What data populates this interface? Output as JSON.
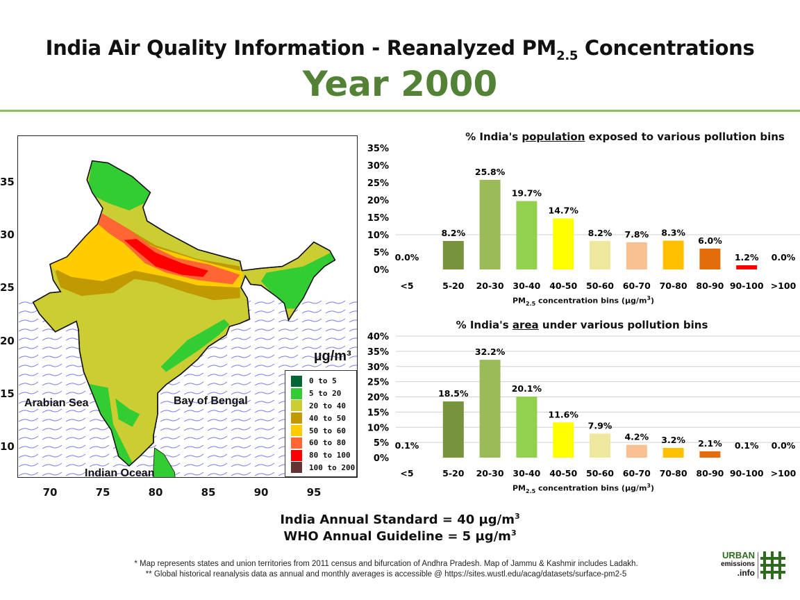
{
  "header": {
    "title_main": "India Air Quality Information - Reanalyzed PM",
    "title_sub": "2.5",
    "title_end": " Concentrations",
    "year": "Year 2000"
  },
  "map": {
    "x_ticks": [
      "70",
      "75",
      "80",
      "85",
      "90",
      "95"
    ],
    "y_ticks": [
      "35",
      "30",
      "25",
      "20",
      "15",
      "10"
    ],
    "labels": {
      "arabian_sea": "Arabian Sea",
      "bay_of_bengal": "Bay of Bengal",
      "indian_ocean": "Indian Ocean"
    },
    "unit": "µg/m³",
    "legend": [
      {
        "label": "0 to 5",
        "color": "#006633"
      },
      {
        "label": "5 to 20",
        "color": "#33cc33"
      },
      {
        "label": "20 to 40",
        "color": "#cccc33"
      },
      {
        "label": "40 to 50",
        "color": "#c09a00"
      },
      {
        "label": "50 to 60",
        "color": "#ffcc00"
      },
      {
        "label": "60 to 80",
        "color": "#ff6633"
      },
      {
        "label": "80 to 100",
        "color": "#ff0000"
      },
      {
        "label": "100 to 200",
        "color": "#663333"
      }
    ]
  },
  "chart_data": [
    {
      "type": "bar",
      "title_pre": "% India's ",
      "title_underlined": "population",
      "title_post": " exposed to various pollution bins",
      "xlabel_pre": "PM",
      "xlabel_sub": "2.5",
      "xlabel_mid": " concentration bins (µg/m",
      "xlabel_sup": "3",
      "xlabel_post": ")",
      "categories": [
        "<5",
        "5-20",
        "20-30",
        "30-40",
        "40-50",
        "50-60",
        "60-70",
        "70-80",
        "80-90",
        "90-100",
        ">100"
      ],
      "values": [
        0.0,
        8.2,
        25.8,
        19.7,
        14.7,
        8.2,
        7.8,
        8.3,
        6.0,
        1.2,
        0.0
      ],
      "labels": [
        "0.0%",
        "8.2%",
        "25.8%",
        "19.7%",
        "14.7%",
        "8.2%",
        "7.8%",
        "8.3%",
        "6.0%",
        "1.2%",
        "0.0%"
      ],
      "yticks": [
        "0%",
        "5%",
        "10%",
        "15%",
        "20%",
        "25%",
        "30%",
        "35%"
      ],
      "ylim": [
        0,
        35
      ],
      "gridlines": [
        10
      ]
    },
    {
      "type": "bar",
      "title_pre": "% India's ",
      "title_underlined": "area",
      "title_post": " under various pollution bins",
      "xlabel_pre": "PM",
      "xlabel_sub": "2.5",
      "xlabel_mid": " concentration bins (µg/m",
      "xlabel_sup": "3",
      "xlabel_post": ")",
      "categories": [
        "<5",
        "5-20",
        "20-30",
        "30-40",
        "40-50",
        "50-60",
        "60-70",
        "70-80",
        "80-90",
        "90-100",
        ">100"
      ],
      "values": [
        0.1,
        18.5,
        32.2,
        20.1,
        11.6,
        7.9,
        4.2,
        3.2,
        2.1,
        0.1,
        0.0
      ],
      "labels": [
        "0.1%",
        "18.5%",
        "32.2%",
        "20.1%",
        "11.6%",
        "7.9%",
        "4.2%",
        "3.2%",
        "2.1%",
        "0.1%",
        "0.0%"
      ],
      "yticks": [
        "0%",
        "5%",
        "10%",
        "15%",
        "20%",
        "25%",
        "30%",
        "35%",
        "40%"
      ],
      "ylim": [
        0,
        40
      ],
      "gridlines": [
        5,
        10,
        15,
        20,
        25,
        30,
        35,
        40
      ]
    }
  ],
  "bar_colors": [
    "#77933c",
    "#77933c",
    "#9bbb59",
    "#92d050",
    "#ffff00",
    "#efe89c",
    "#f9c091",
    "#ffc000",
    "#e46c0a",
    "#ff0000",
    "#7f0000"
  ],
  "standards": {
    "india_pre": "India Annual Standard = 40 µg/m",
    "india_sup": "3",
    "who_pre": "WHO Annual Guideline = 5 µg/m",
    "who_sup": "3"
  },
  "footnotes": [
    "* Map represents states and union territories from 2011 census and bifurcation of Andhra Pradesh. Map of Jammu & Kashmir includes Ladakh.",
    "** Global historical reanalysis data as annual and monthly averages is accessible @ https://sites.wustl.edu/acag/datasets/surface-pm2-5"
  ],
  "logo": {
    "line1": "URBAN",
    "line2": "emissions",
    "line3": ".info",
    "color": "#2e6b1f"
  }
}
